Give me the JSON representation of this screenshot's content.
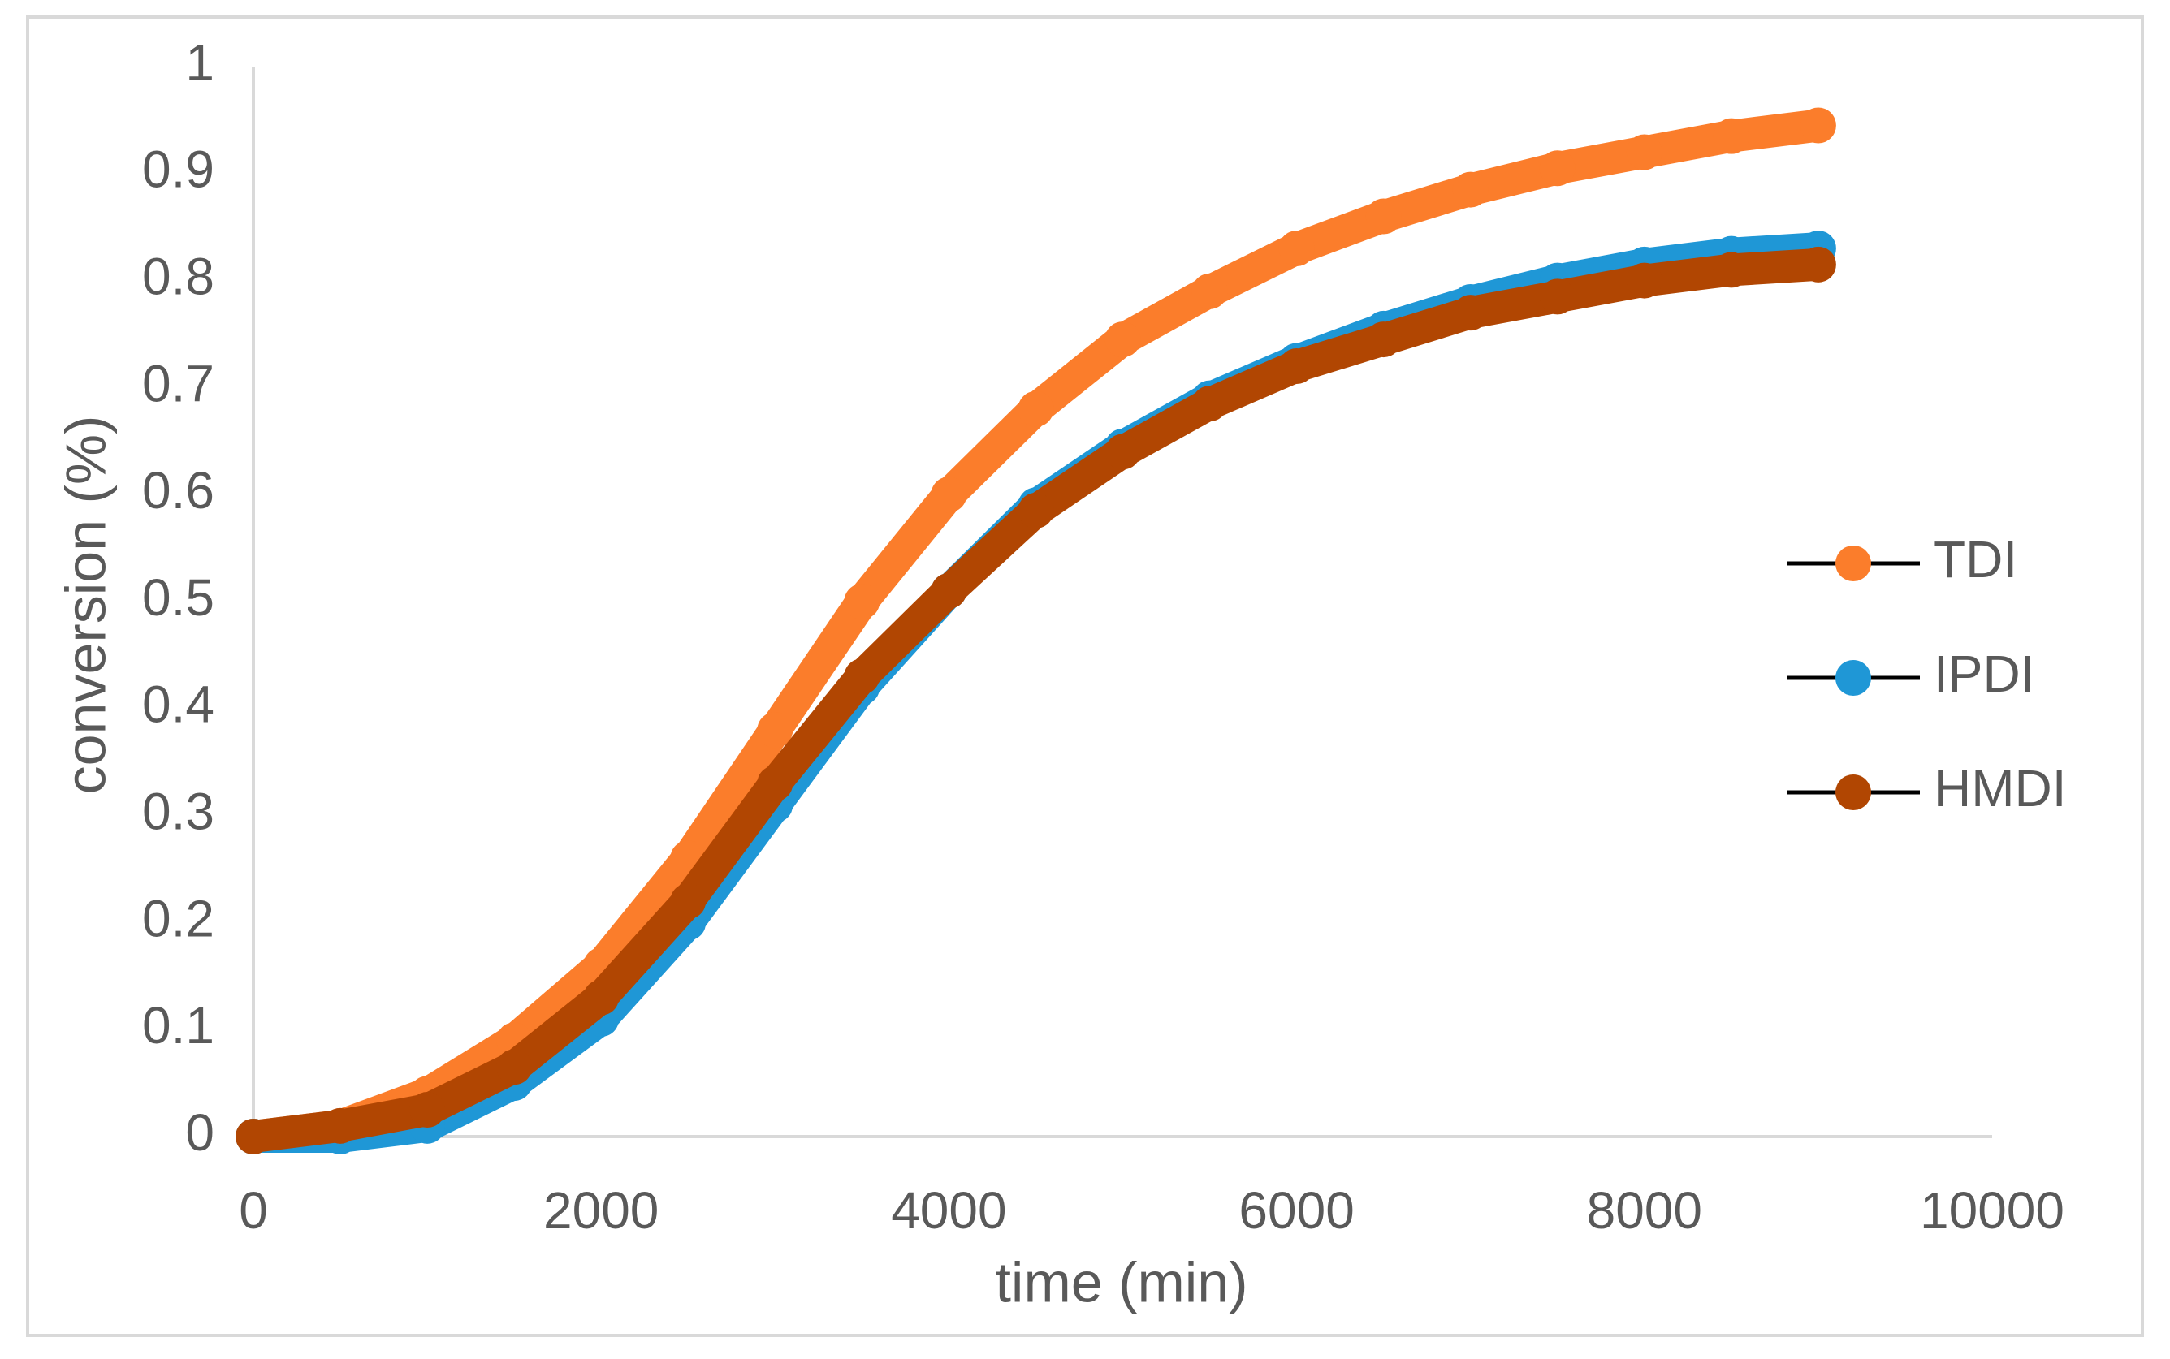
{
  "chart_data": {
    "type": "scatter-line",
    "x_label": "time (min)",
    "y_label": "conversion (%)",
    "x": [
      0,
      500,
      1000,
      1500,
      2000,
      2500,
      3000,
      3500,
      4000,
      4500,
      5000,
      5500,
      6000,
      6500,
      7000,
      7500,
      8000,
      8500,
      9000
    ],
    "series": [
      {
        "name": "TDI",
        "color": "#fb7d2b",
        "values": [
          0,
          0.01,
          0.04,
          0.09,
          0.16,
          0.26,
          0.38,
          0.5,
          0.6,
          0.68,
          0.745,
          0.79,
          0.83,
          0.86,
          0.885,
          0.905,
          0.92,
          0.935,
          0.945
        ]
      },
      {
        "name": "IPDI",
        "color": "#1f97d6",
        "values": [
          0,
          0,
          0.01,
          0.05,
          0.11,
          0.2,
          0.31,
          0.42,
          0.51,
          0.59,
          0.645,
          0.69,
          0.725,
          0.755,
          0.78,
          0.8,
          0.815,
          0.825,
          0.83
        ]
      },
      {
        "name": "HMDI",
        "color": "#b14602",
        "values": [
          0,
          0.01,
          0.025,
          0.065,
          0.13,
          0.22,
          0.33,
          0.43,
          0.51,
          0.585,
          0.64,
          0.685,
          0.72,
          0.745,
          0.77,
          0.785,
          0.8,
          0.81,
          0.815
        ]
      }
    ],
    "xlim": [
      0,
      10000
    ],
    "xticks": [
      0,
      2000,
      4000,
      6000,
      8000,
      10000
    ],
    "ylim": [
      0,
      1
    ],
    "yticks": [
      0,
      0.1,
      0.2,
      0.3,
      0.4,
      0.5,
      0.6,
      0.7,
      0.8,
      0.9,
      1
    ],
    "grid": false,
    "legend": "right"
  }
}
